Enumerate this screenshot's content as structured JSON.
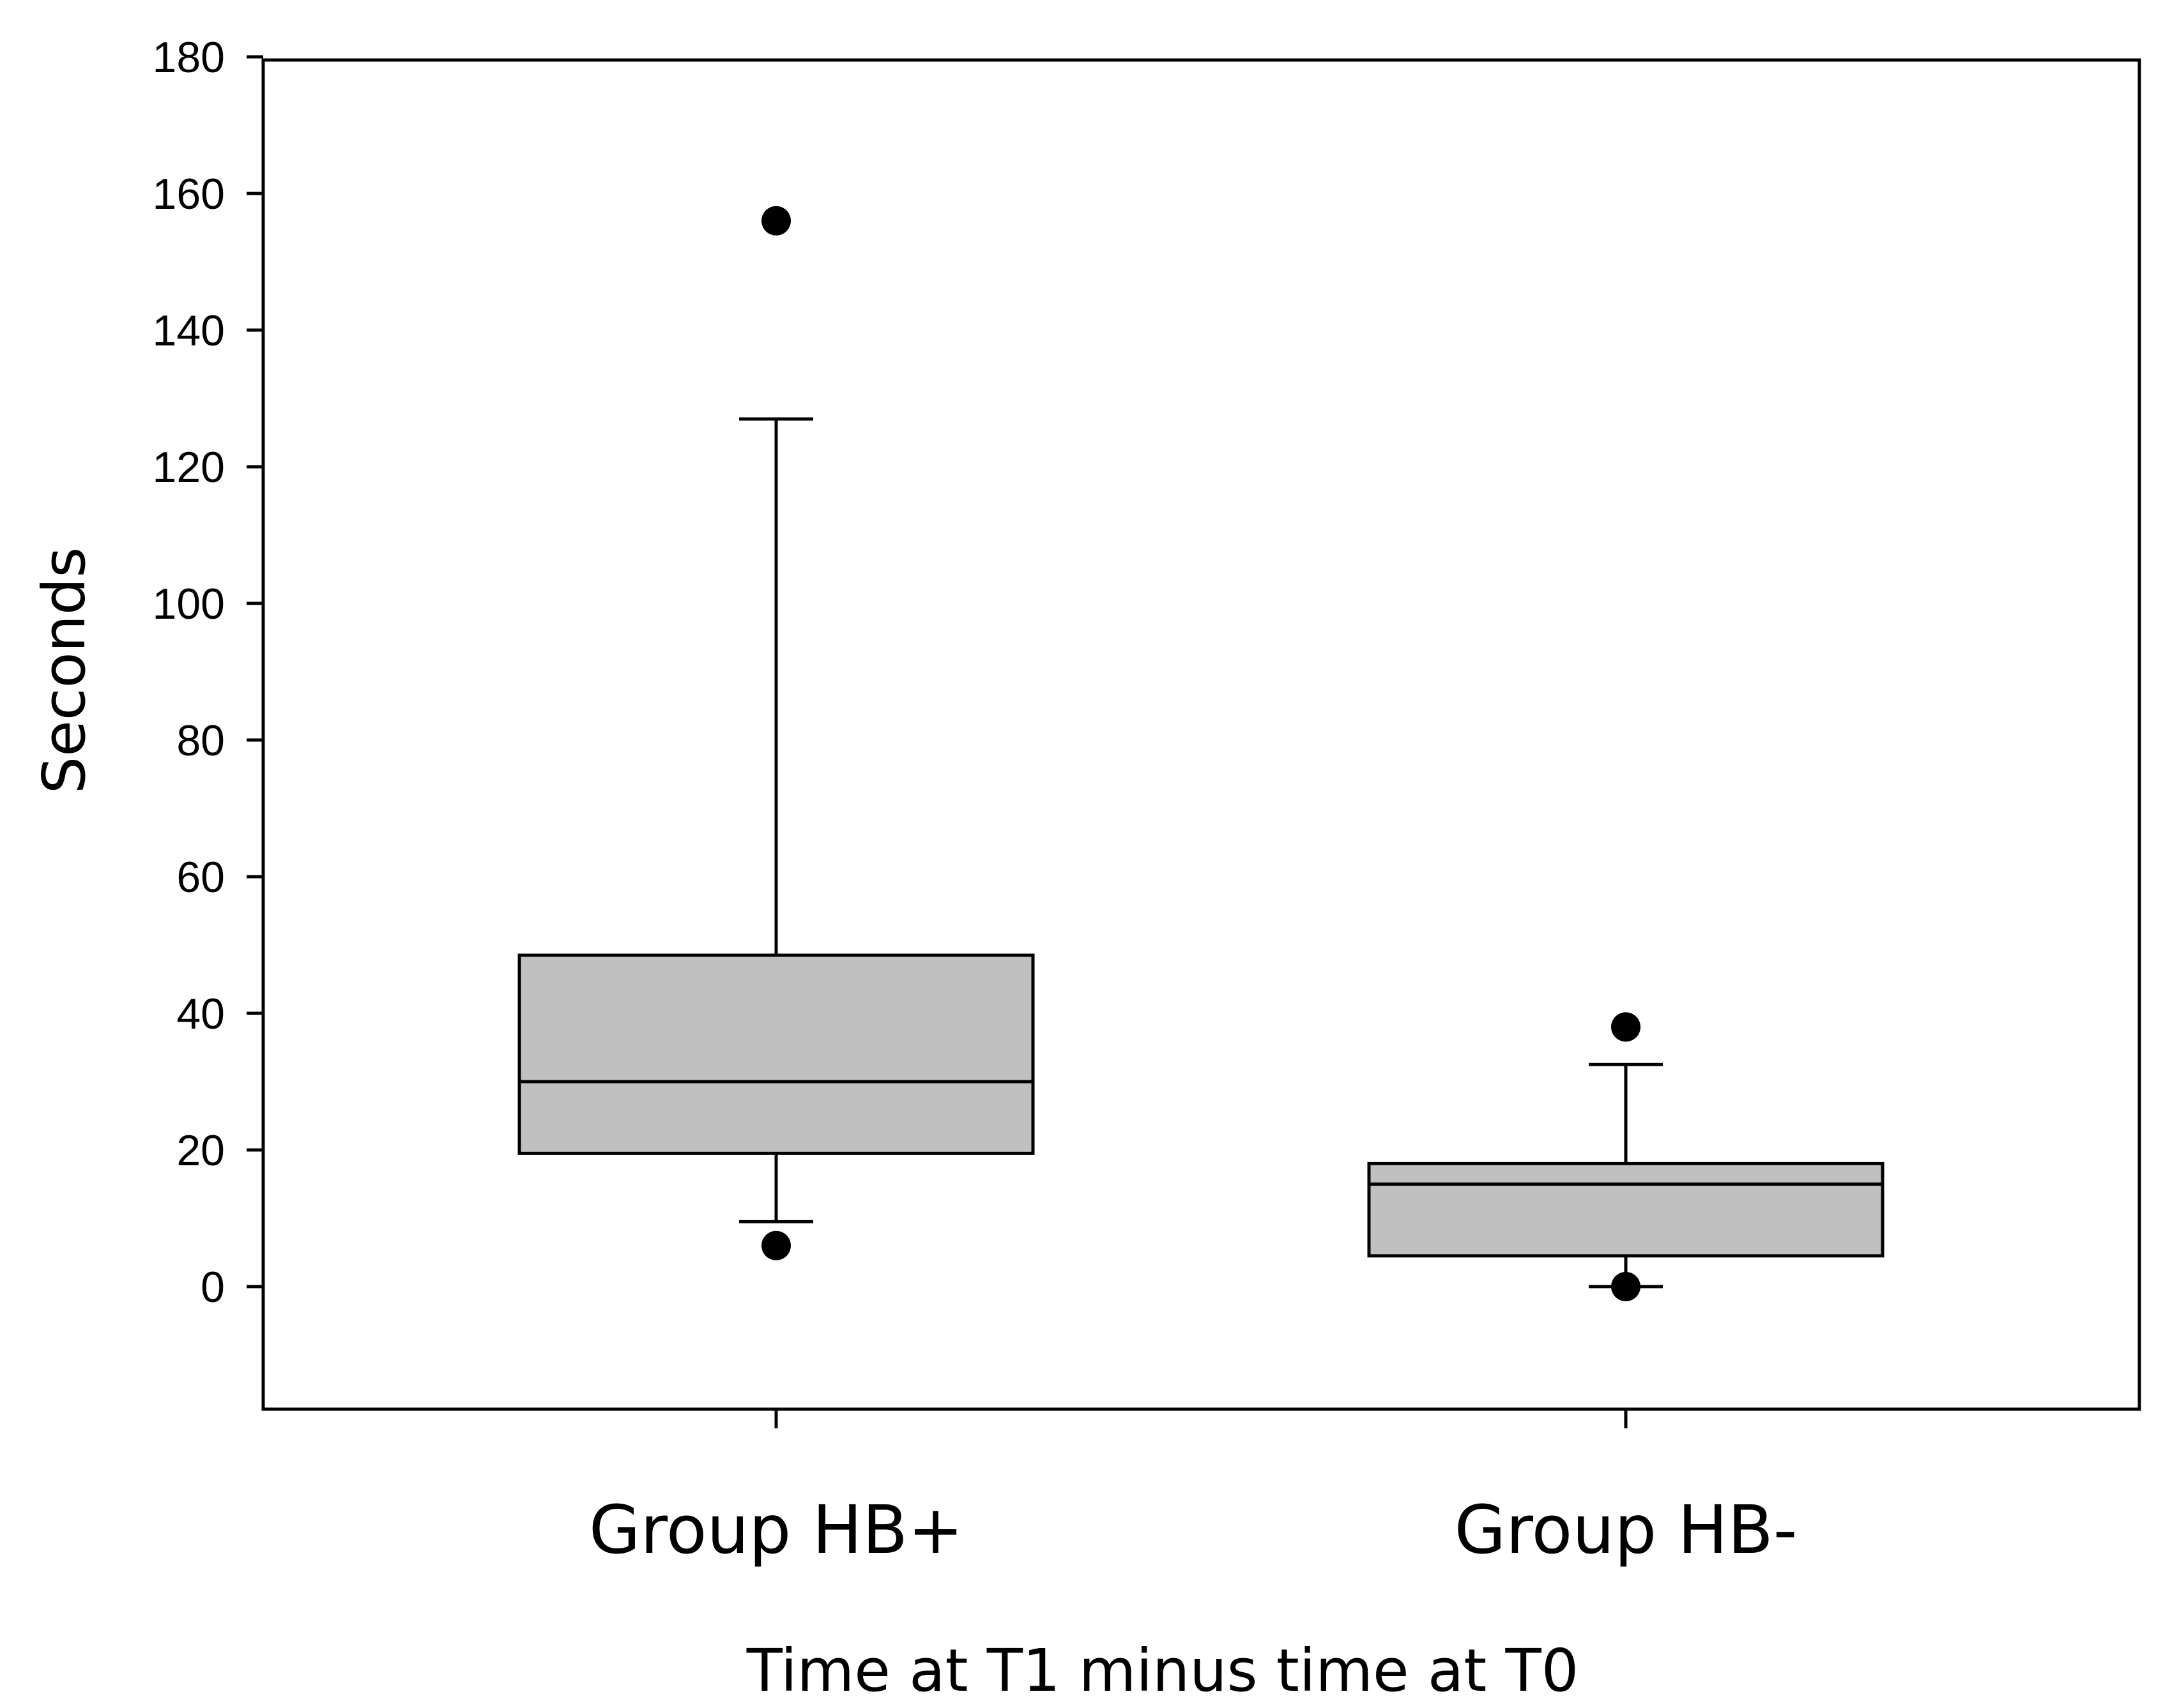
{
  "chart_data": {
    "type": "box",
    "title": "",
    "xlabel": "Time at T1 minus time at T0",
    "ylabel": "Seconds",
    "ylim": [
      -18,
      180
    ],
    "yticks": [
      0,
      20,
      40,
      60,
      80,
      100,
      120,
      140,
      160,
      180
    ],
    "ytick_labels": [
      "0",
      "20",
      "40",
      "60",
      "80",
      "100",
      "120",
      "140",
      "160",
      "180"
    ],
    "grid": false,
    "legend": "none",
    "categories": [
      "Group HB+",
      "Group HB-"
    ],
    "boxes": [
      {
        "category": "Group HB+",
        "whisker_low": 9.5,
        "q1": 19.5,
        "median": 30,
        "q3": 48.5,
        "whisker_high": 127,
        "outliers": [
          156,
          6
        ]
      },
      {
        "category": "Group HB-",
        "whisker_low": 0,
        "q1": 4.5,
        "median": 15,
        "q3": 18,
        "whisker_high": 32.5,
        "outliers": [
          38,
          0
        ]
      }
    ],
    "colors": {
      "box_fill": "#c0c0c0",
      "stroke": "#000000",
      "outlier": "#000000"
    }
  }
}
